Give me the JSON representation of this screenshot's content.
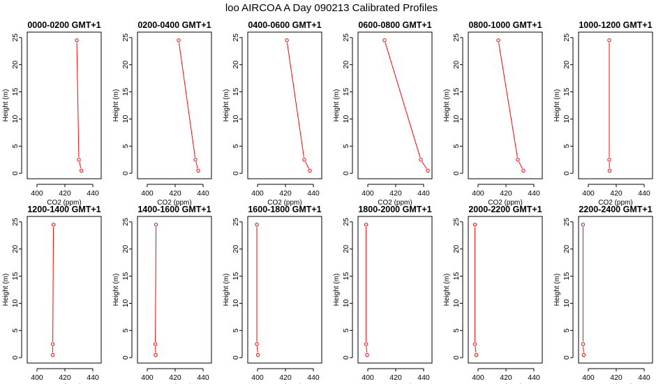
{
  "title": "loo AIRCOA A  Day 090213  Calibrated Profiles",
  "colors": {
    "profile": "#ff0000",
    "axis": "#000000",
    "background": "#ffffff"
  },
  "chart_data": {
    "type": "line",
    "title": "loo AIRCOA A  Day 090213  Calibrated Profiles",
    "xlabel": "CO2 (ppm)",
    "ylabel": "Height (m)",
    "xlim": [
      393,
      446
    ],
    "ylim": [
      -1,
      26
    ],
    "x_ticks": [
      400,
      420,
      440
    ],
    "y_ticks": [
      0,
      5,
      10,
      15,
      20,
      25
    ],
    "grid": false,
    "layout": "2 rows x 6 panels",
    "panels": [
      {
        "title": "0000-0200 GMT+1",
        "x": [
          428.5,
          430.0,
          431.8
        ],
        "y": [
          24.5,
          2.5,
          0.5
        ]
      },
      {
        "title": "0200-0400 GMT+1",
        "x": [
          422.5,
          434.5,
          436.5
        ],
        "y": [
          24.5,
          2.5,
          0.5
        ]
      },
      {
        "title": "0400-0600 GMT+1",
        "x": [
          421.0,
          433.5,
          437.5
        ],
        "y": [
          24.5,
          2.5,
          0.5
        ]
      },
      {
        "title": "0600-0800 GMT+1",
        "x": [
          412.0,
          438.0,
          443.0
        ],
        "y": [
          24.5,
          2.5,
          0.5
        ]
      },
      {
        "title": "0800-1000 GMT+1",
        "x": [
          414.5,
          428.5,
          432.5
        ],
        "y": [
          24.5,
          2.5,
          0.5
        ]
      },
      {
        "title": "1000-1200 GMT+1",
        "x": [
          415.0,
          415.0,
          415.2
        ],
        "y": [
          24.5,
          2.5,
          0.5
        ]
      },
      {
        "title": "1200-1400 GMT+1",
        "x": [
          411.8,
          411.3,
          411.3
        ],
        "y": [
          24.5,
          2.5,
          0.5
        ]
      },
      {
        "title": "1400-1600 GMT+1",
        "x": [
          406.3,
          405.8,
          406.0
        ],
        "y": [
          24.5,
          2.5,
          0.5
        ]
      },
      {
        "title": "1600-1800 GMT+1",
        "x": [
          399.5,
          399.5,
          400.3
        ],
        "y": [
          24.5,
          2.5,
          0.5
        ]
      },
      {
        "title": "1800-2000 GMT+1",
        "x": [
          398.8,
          398.8,
          399.5
        ],
        "y": [
          24.5,
          2.5,
          0.5
        ]
      },
      {
        "title": "2000-2200 GMT+1",
        "x": [
          397.7,
          397.7,
          398.7
        ],
        "y": [
          24.5,
          2.5,
          0.5
        ]
      },
      {
        "title": "2200-2400 GMT+1",
        "x": [
          396.2,
          396.2,
          396.7
        ],
        "y": [
          24.5,
          2.5,
          0.5
        ]
      }
    ]
  }
}
